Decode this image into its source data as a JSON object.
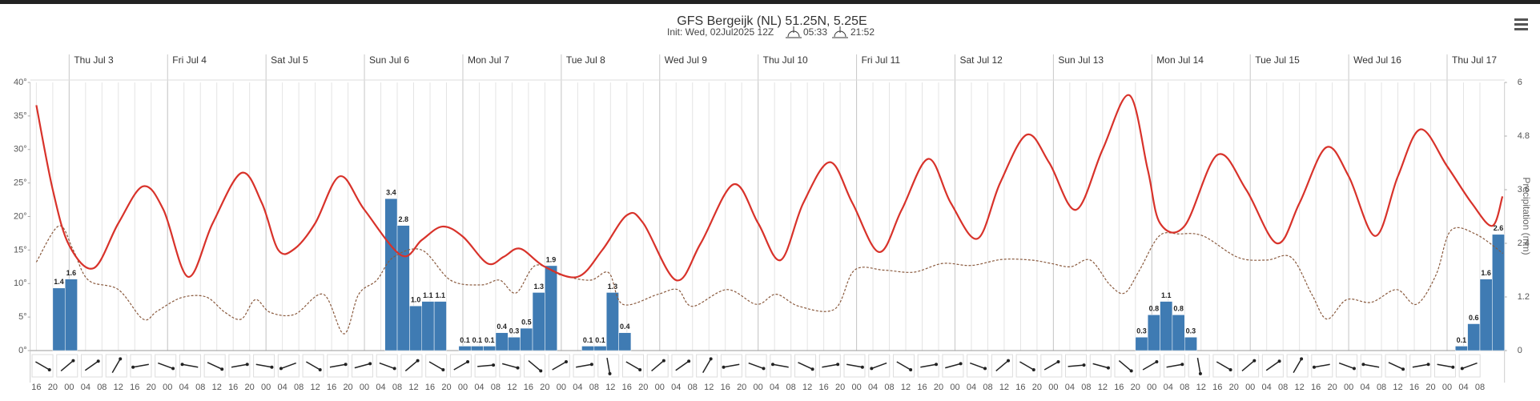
{
  "chart_data": {
    "type": "line",
    "title": "GFS Bergeijk (NL) 51.25N, 5.25E",
    "subtitle": "Init: Wed, 02Jul2025 12Z",
    "sunrise": "05:33",
    "sunset": "21:52",
    "y2label": "Precipitation (mm)",
    "xlim": [
      14.5,
      374
    ],
    "xticks": [
      {
        "value": 16,
        "label": "16"
      },
      {
        "value": 20,
        "label": "20"
      },
      {
        "value": 24,
        "label": "00"
      },
      {
        "value": 28,
        "label": "04"
      },
      {
        "value": 32,
        "label": "08"
      },
      {
        "value": 36,
        "label": "12"
      },
      {
        "value": 40,
        "label": "16"
      },
      {
        "value": 44,
        "label": "20"
      },
      {
        "value": 48,
        "label": "00"
      },
      {
        "value": 52,
        "label": "04"
      },
      {
        "value": 56,
        "label": "08"
      },
      {
        "value": 60,
        "label": "12"
      },
      {
        "value": 64,
        "label": "16"
      },
      {
        "value": 68,
        "label": "20"
      },
      {
        "value": 72,
        "label": "00"
      },
      {
        "value": 76,
        "label": "04"
      },
      {
        "value": 80,
        "label": "08"
      },
      {
        "value": 84,
        "label": "12"
      },
      {
        "value": 88,
        "label": "16"
      },
      {
        "value": 92,
        "label": "20"
      },
      {
        "value": 96,
        "label": "00"
      },
      {
        "value": 100,
        "label": "04"
      },
      {
        "value": 104,
        "label": "08"
      },
      {
        "value": 108,
        "label": "12"
      },
      {
        "value": 112,
        "label": "16"
      },
      {
        "value": 116,
        "label": "20"
      },
      {
        "value": 120,
        "label": "00"
      },
      {
        "value": 124,
        "label": "04"
      },
      {
        "value": 128,
        "label": "08"
      },
      {
        "value": 132,
        "label": "12"
      },
      {
        "value": 136,
        "label": "16"
      },
      {
        "value": 140,
        "label": "20"
      },
      {
        "value": 144,
        "label": "00"
      },
      {
        "value": 148,
        "label": "04"
      },
      {
        "value": 152,
        "label": "08"
      },
      {
        "value": 156,
        "label": "12"
      },
      {
        "value": 160,
        "label": "16"
      },
      {
        "value": 164,
        "label": "20"
      },
      {
        "value": 168,
        "label": "00"
      },
      {
        "value": 172,
        "label": "04"
      },
      {
        "value": 176,
        "label": "08"
      },
      {
        "value": 180,
        "label": "12"
      },
      {
        "value": 184,
        "label": "16"
      },
      {
        "value": 188,
        "label": "20"
      },
      {
        "value": 192,
        "label": "00"
      },
      {
        "value": 196,
        "label": "04"
      },
      {
        "value": 200,
        "label": "08"
      },
      {
        "value": 204,
        "label": "12"
      },
      {
        "value": 208,
        "label": "16"
      },
      {
        "value": 212,
        "label": "20"
      },
      {
        "value": 216,
        "label": "00"
      },
      {
        "value": 220,
        "label": "04"
      },
      {
        "value": 224,
        "label": "08"
      },
      {
        "value": 228,
        "label": "12"
      },
      {
        "value": 232,
        "label": "16"
      },
      {
        "value": 236,
        "label": "20"
      },
      {
        "value": 240,
        "label": "00"
      },
      {
        "value": 244,
        "label": "04"
      },
      {
        "value": 248,
        "label": "08"
      },
      {
        "value": 252,
        "label": "12"
      },
      {
        "value": 256,
        "label": "16"
      },
      {
        "value": 260,
        "label": "20"
      },
      {
        "value": 264,
        "label": "00"
      },
      {
        "value": 268,
        "label": "04"
      },
      {
        "value": 272,
        "label": "08"
      },
      {
        "value": 276,
        "label": "12"
      },
      {
        "value": 280,
        "label": "16"
      },
      {
        "value": 284,
        "label": "20"
      },
      {
        "value": 288,
        "label": "00"
      },
      {
        "value": 292,
        "label": "04"
      },
      {
        "value": 296,
        "label": "08"
      },
      {
        "value": 300,
        "label": "12"
      },
      {
        "value": 304,
        "label": "16"
      },
      {
        "value": 308,
        "label": "20"
      },
      {
        "value": 312,
        "label": "00"
      },
      {
        "value": 316,
        "label": "04"
      },
      {
        "value": 320,
        "label": "08"
      },
      {
        "value": 324,
        "label": "12"
      },
      {
        "value": 328,
        "label": "16"
      },
      {
        "value": 332,
        "label": "20"
      },
      {
        "value": 336,
        "label": "00"
      },
      {
        "value": 340,
        "label": "04"
      },
      {
        "value": 344,
        "label": "08"
      },
      {
        "value": 348,
        "label": "12"
      },
      {
        "value": 352,
        "label": "16"
      },
      {
        "value": 356,
        "label": "20"
      },
      {
        "value": 360,
        "label": "00"
      },
      {
        "value": 364,
        "label": "04"
      },
      {
        "value": 368,
        "label": "08"
      }
    ],
    "day_ticks": [
      {
        "value": 24,
        "label": "Thu Jul 3"
      },
      {
        "value": 48,
        "label": "Fri Jul 4"
      },
      {
        "value": 72,
        "label": "Sat Jul 5"
      },
      {
        "value": 96,
        "label": "Sun Jul 6"
      },
      {
        "value": 120,
        "label": "Mon Jul 7"
      },
      {
        "value": 144,
        "label": "Tue Jul 8"
      },
      {
        "value": 168,
        "label": "Wed Jul 9"
      },
      {
        "value": 192,
        "label": "Thu Jul 10"
      },
      {
        "value": 216,
        "label": "Fri Jul 11"
      },
      {
        "value": 240,
        "label": "Sat Jul 12"
      },
      {
        "value": 264,
        "label": "Sun Jul 13"
      },
      {
        "value": 288,
        "label": "Mon Jul 14"
      },
      {
        "value": 312,
        "label": "Tue Jul 15"
      },
      {
        "value": 336,
        "label": "Wed Jul 16"
      },
      {
        "value": 360,
        "label": "Thu Jul 17"
      }
    ],
    "ylim": [
      0,
      40
    ],
    "yticks": [
      {
        "value": 0,
        "label": "0°"
      },
      {
        "value": 5,
        "label": "5°"
      },
      {
        "value": 10,
        "label": "10°"
      },
      {
        "value": 15,
        "label": "15°"
      },
      {
        "value": 20,
        "label": "20°"
      },
      {
        "value": 25,
        "label": "25°"
      },
      {
        "value": 30,
        "label": "30°"
      },
      {
        "value": 35,
        "label": "35°"
      },
      {
        "value": 40,
        "label": "40°"
      }
    ],
    "y2lim": [
      0,
      6
    ],
    "y2ticks": [
      0,
      1.2,
      2.4,
      3.6,
      4.8,
      6
    ],
    "series": [
      {
        "type": "bar",
        "axis": "y2",
        "color": "#3f7bb3",
        "x": [
          20,
          23,
          101,
          104,
          107,
          110,
          113,
          119,
          122,
          125,
          128,
          131,
          134,
          137,
          140,
          149,
          152,
          155,
          158,
          284,
          287,
          290,
          293,
          296,
          362,
          365,
          368,
          371
        ],
        "values": [
          1.4,
          1.6,
          3.4,
          2.8,
          1.0,
          1.1,
          1.1,
          0.1,
          0.1,
          0.1,
          0.4,
          0.3,
          0.5,
          1.3,
          1.9,
          0.1,
          0.1,
          1.3,
          0.4,
          0.3,
          0.8,
          1.1,
          0.8,
          0.3,
          0.1,
          0.6,
          1.6,
          2.6
        ],
        "value_labels": [
          "1.4",
          "1.6",
          "3.4",
          "2.8",
          "1.0",
          "1.1",
          "1.1",
          "0.1",
          "0.1",
          "0.1",
          "0.4",
          "0.3",
          "0.5",
          "1.3",
          "1.9",
          "0.1",
          "0.1",
          "1.3",
          "0.4",
          "0.3",
          "0.8",
          "1.1",
          "0.8",
          "0.3",
          "0.1",
          "0.6",
          "1.6",
          "2.6"
        ]
      },
      {
        "type": "line",
        "color": "#8a5a3e",
        "dash": true,
        "x": [
          16,
          21.5,
          25,
          28.7,
          36,
          42,
          45.5,
          51.4,
          57.4,
          62,
          66,
          69.4,
          73,
          79,
          86,
          91,
          94.6,
          99,
          103,
          110,
          117,
          124.5,
          129,
          133,
          137.7,
          143.7,
          151,
          155.6,
          159,
          167.6,
          172.4,
          176,
          184.4,
          191.6,
          196.4,
          202,
          210.7,
          215.5,
          222.7,
          230,
          237,
          244,
          251.5,
          258.6,
          263.4,
          268.2,
          273,
          277.8,
          281.4,
          285,
          289.8,
          294.6,
          300.5,
          309,
          316,
          322,
          327,
          330.7,
          335.5,
          341.5,
          347.7,
          352.5,
          357.3,
          360.9,
          366.9,
          373.6
        ],
        "values": [
          13.2,
          18.6,
          15,
          10.5,
          9.1,
          4.7,
          5.9,
          7.9,
          8,
          5.7,
          4.7,
          7.6,
          5.7,
          5.4,
          8.4,
          2.5,
          8.4,
          10.5,
          13.9,
          15,
          10.5,
          9.8,
          10.5,
          8.6,
          12.7,
          11.3,
          10.5,
          11.6,
          6.9,
          8.4,
          9.1,
          6.6,
          9.1,
          6.9,
          8.4,
          6.6,
          6.2,
          12,
          12,
          11.7,
          13,
          12.7,
          13.6,
          13.5,
          13,
          12.5,
          13.5,
          9.8,
          8.6,
          12,
          17.1,
          17.4,
          17.1,
          13.9,
          13.5,
          13.9,
          8.4,
          4.7,
          7.6,
          7.2,
          9.1,
          6.9,
          11.3,
          17.9,
          17.4,
          14.5
        ]
      },
      {
        "type": "line",
        "color": "#d8322a",
        "x": [
          16,
          20,
          24,
          30,
          36,
          42,
          47,
          53,
          59,
          66,
          71,
          75,
          79,
          84,
          90,
          96,
          105,
          110,
          115,
          120,
          126,
          130,
          134,
          140,
          148,
          154,
          160,
          164,
          172,
          178,
          186,
          192,
          197.5,
          203,
          209.5,
          215,
          221.5,
          227,
          233.5,
          239,
          245.5,
          251,
          257.5,
          263,
          269.5,
          276,
          282.5,
          287,
          290,
          296,
          304,
          311,
          318.5,
          324,
          330.5,
          336,
          342.5,
          348,
          353.5,
          360,
          366,
          371,
          373.5
        ],
        "values": [
          36.6,
          24,
          15.7,
          12.3,
          19,
          24.5,
          21,
          11,
          19,
          26.5,
          22,
          15,
          15.2,
          19,
          26,
          21,
          14.2,
          16.5,
          18.5,
          17,
          13,
          14,
          15.2,
          12.5,
          11,
          15,
          20.2,
          19,
          10.5,
          16,
          24.8,
          19,
          13.5,
          22,
          28.1,
          22,
          14.7,
          21,
          28.6,
          22,
          16.7,
          25,
          32.2,
          28,
          21,
          30,
          38.1,
          27,
          19,
          18.6,
          29.2,
          24,
          16,
          22,
          30.3,
          26,
          17.1,
          26,
          33,
          27.5,
          22,
          18.6,
          23
        ]
      }
    ]
  }
}
